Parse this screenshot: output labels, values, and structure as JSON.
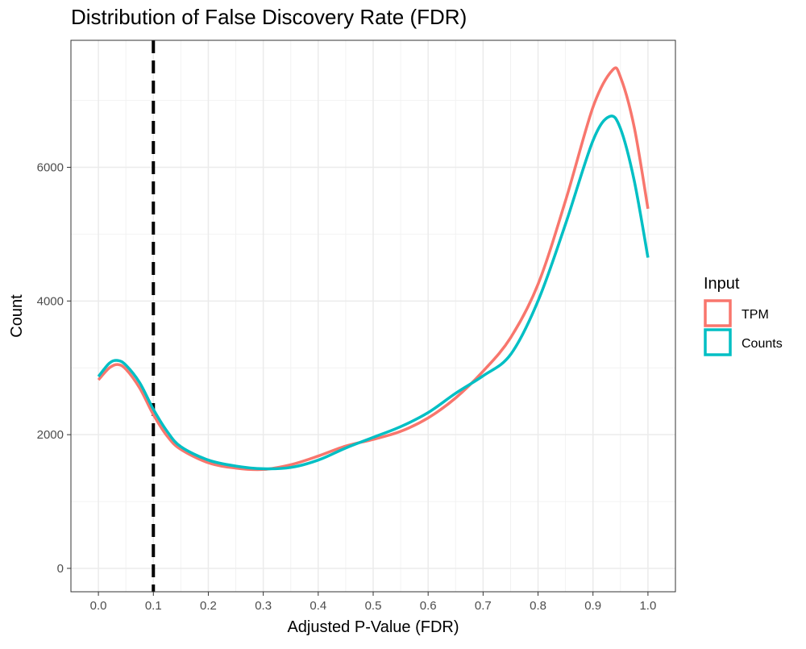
{
  "chart_data": {
    "type": "line",
    "title": "Distribution of False Discovery Rate (FDR)",
    "xlabel": "Adjusted P-Value (FDR)",
    "ylabel": "Count",
    "xlim": [
      -0.05,
      1.05
    ],
    "ylim": [
      -350,
      7900
    ],
    "x_ticks": [
      0.0,
      0.1,
      0.2,
      0.3,
      0.4,
      0.5,
      0.6,
      0.7,
      0.8,
      0.9,
      1.0
    ],
    "x_tick_labels": [
      "0.0",
      "0.1",
      "0.2",
      "0.3",
      "0.4",
      "0.5",
      "0.6",
      "0.7",
      "0.8",
      "0.9",
      "1.0"
    ],
    "y_ticks": [
      0,
      2000,
      4000,
      6000
    ],
    "y_tick_labels": [
      "0",
      "2000",
      "4000",
      "6000"
    ],
    "grid": true,
    "reference_line": {
      "x": 0.1,
      "style": "dashed",
      "color": "#000000"
    },
    "legend": {
      "title": "Input",
      "position": "right",
      "entries": [
        {
          "label": "TPM",
          "color": "#F8766D"
        },
        {
          "label": "Counts",
          "color": "#00BFC4"
        }
      ]
    },
    "series": [
      {
        "name": "TPM",
        "color": "#F8766D",
        "points": [
          [
            0.0,
            2820
          ],
          [
            0.02,
            3000
          ],
          [
            0.035,
            3050
          ],
          [
            0.05,
            2980
          ],
          [
            0.075,
            2700
          ],
          [
            0.1,
            2300
          ],
          [
            0.125,
            1980
          ],
          [
            0.15,
            1780
          ],
          [
            0.2,
            1580
          ],
          [
            0.25,
            1500
          ],
          [
            0.3,
            1480
          ],
          [
            0.35,
            1550
          ],
          [
            0.4,
            1680
          ],
          [
            0.45,
            1830
          ],
          [
            0.5,
            1930
          ],
          [
            0.55,
            2050
          ],
          [
            0.6,
            2250
          ],
          [
            0.65,
            2550
          ],
          [
            0.7,
            2950
          ],
          [
            0.75,
            3450
          ],
          [
            0.8,
            4250
          ],
          [
            0.85,
            5500
          ],
          [
            0.9,
            6900
          ],
          [
            0.935,
            7450
          ],
          [
            0.95,
            7350
          ],
          [
            0.975,
            6600
          ],
          [
            1.0,
            5380
          ]
        ]
      },
      {
        "name": "Counts",
        "color": "#00BFC4",
        "points": [
          [
            0.0,
            2870
          ],
          [
            0.02,
            3070
          ],
          [
            0.035,
            3110
          ],
          [
            0.05,
            3040
          ],
          [
            0.075,
            2780
          ],
          [
            0.1,
            2380
          ],
          [
            0.125,
            2050
          ],
          [
            0.15,
            1820
          ],
          [
            0.2,
            1620
          ],
          [
            0.25,
            1530
          ],
          [
            0.3,
            1490
          ],
          [
            0.35,
            1510
          ],
          [
            0.4,
            1620
          ],
          [
            0.45,
            1800
          ],
          [
            0.5,
            1960
          ],
          [
            0.55,
            2120
          ],
          [
            0.6,
            2330
          ],
          [
            0.65,
            2620
          ],
          [
            0.7,
            2880
          ],
          [
            0.75,
            3200
          ],
          [
            0.8,
            4000
          ],
          [
            0.85,
            5150
          ],
          [
            0.9,
            6400
          ],
          [
            0.93,
            6760
          ],
          [
            0.95,
            6580
          ],
          [
            0.975,
            5800
          ],
          [
            1.0,
            4650
          ]
        ]
      }
    ]
  }
}
